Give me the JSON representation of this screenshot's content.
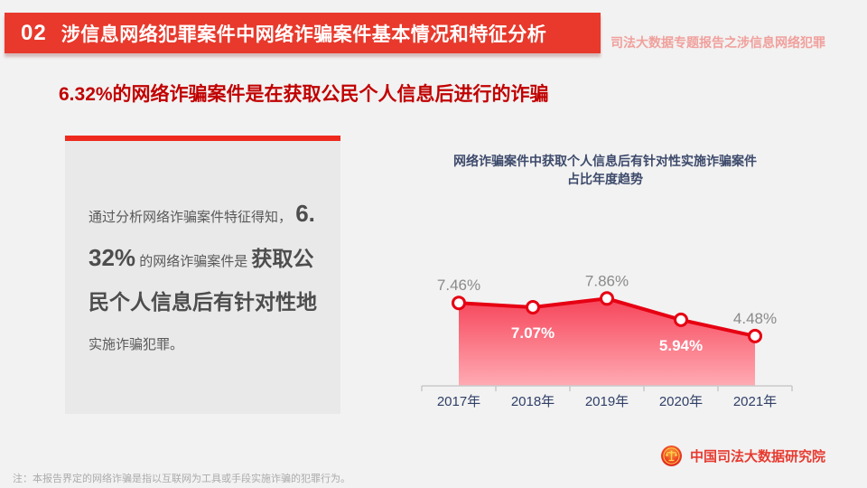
{
  "header": {
    "number": "02",
    "title": "涉信息网络犯罪案件中网络诈骗案件基本情况和特征分析",
    "side_label": "司法大数据专题报告之涉信息网络犯罪",
    "bar_color": "#e8392c"
  },
  "subtitle": "6.32%的网络诈骗案件是在获取公民个人信息后进行的诈骗",
  "info_card": {
    "intro": "通过分析网络诈骗案件特征得知，",
    "highlight_pct": "6.32%",
    "mid_text": "的网络诈骗案件是",
    "bold_text": "获取公民个人信息后有针对性地",
    "end_text": "实施诈骗犯罪。",
    "topbar_color": "#ee2a1e",
    "background": "#e9e9e9"
  },
  "chart_data": {
    "type": "area",
    "title": "网络诈骗案件中获取个人信息后有针对性实施诈骗案件占比年度趋势",
    "title_lines": [
      "网络诈骗案件中获取个人信息后有针对性实施诈骗案件",
      "占比年度趋势"
    ],
    "categories": [
      "2017年",
      "2018年",
      "2019年",
      "2020年",
      "2021年"
    ],
    "values": [
      7.46,
      7.07,
      7.86,
      5.94,
      4.48
    ],
    "labels": [
      "7.46%",
      "7.07%",
      "7.86%",
      "5.94%",
      "4.48%"
    ],
    "label_position": [
      "above",
      "below",
      "above",
      "below",
      "above"
    ],
    "ylim": [
      0,
      11.1
    ],
    "grid": false,
    "legend": "none",
    "line_color": "#e60012",
    "marker_fill": "#ffffff",
    "area_top_color": "#f6455a",
    "area_bottom_color": "#ffabb3",
    "axis_color": "#c9c9c9",
    "xlabel_color": "#2f3f66",
    "label_above_color": "#8a8a8a",
    "label_below_color": "#ffffff"
  },
  "footer": {
    "note": "注：本报告界定的网络诈骗是指以互联网为工具或手段实施诈骗的犯罪行为。",
    "org_name": "中国司法大数据研究院"
  }
}
